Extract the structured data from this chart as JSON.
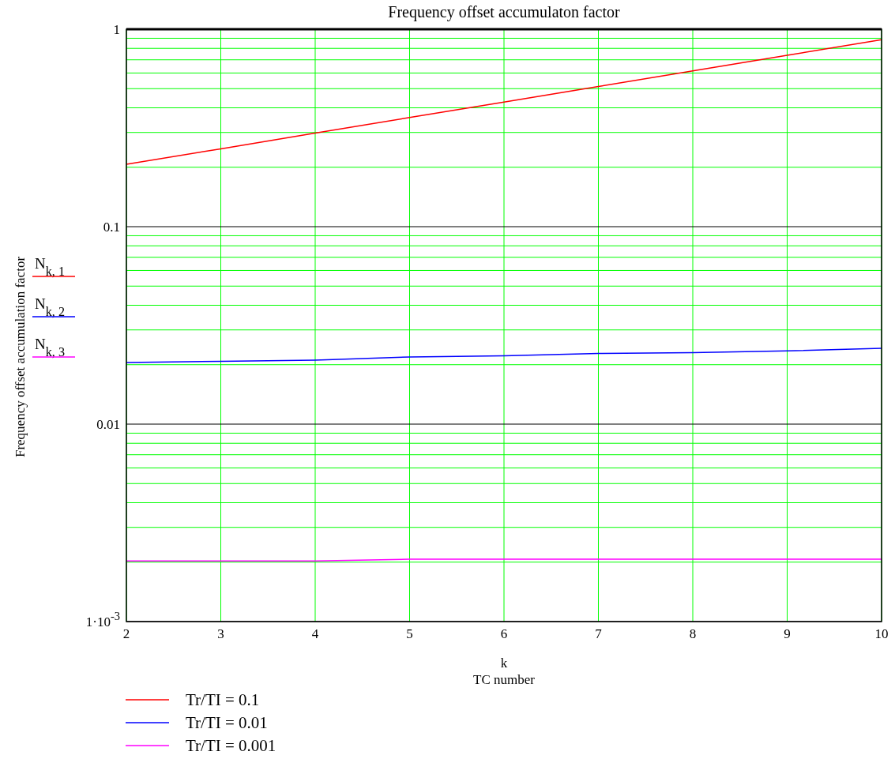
{
  "chart_data": {
    "type": "line",
    "title": "Frequency offset accumulaton factor",
    "xlabel": "k\nTC number",
    "ylabel": "Frequency offset accumulation factor",
    "x": [
      2,
      3,
      4,
      5,
      6,
      7,
      8,
      9,
      10
    ],
    "series": [
      {
        "name": "Tr/TI = 0.1",
        "color": "#ff0000",
        "values": [
          0.207,
          0.248,
          0.298,
          0.357,
          0.428,
          0.513,
          0.615,
          0.738,
          0.886
        ]
      },
      {
        "name": "Tr/TI = 0.01",
        "color": "#0000ff",
        "values": [
          0.0205,
          0.0208,
          0.0211,
          0.0219,
          0.0222,
          0.0228,
          0.023,
          0.0235,
          0.0242
        ]
      },
      {
        "name": "Tr/TI = 0.001",
        "color": "#ff00ff",
        "values": [
          0.00203,
          0.00203,
          0.00203,
          0.00207,
          0.00207,
          0.00207,
          0.00207,
          0.00207,
          0.00207
        ]
      }
    ],
    "annotations": [
      "N$_{k, 1}$",
      "N$_{k, 2}$",
      "N$_{k, 3}$"
    ],
    "xlim": [
      2,
      10
    ],
    "xticks": [
      2,
      3,
      4,
      5,
      6,
      7,
      8,
      9,
      10
    ],
    "ylim": [
      0.001,
      1
    ],
    "yticks": [
      {
        "value": 0.001,
        "label": "1·10$^{-3}$"
      },
      0.01,
      0.1,
      1
    ],
    "log": true,
    "grid": true,
    "legend": "bottom left",
    "line_style": "solid",
    "marker": "none"
  }
}
